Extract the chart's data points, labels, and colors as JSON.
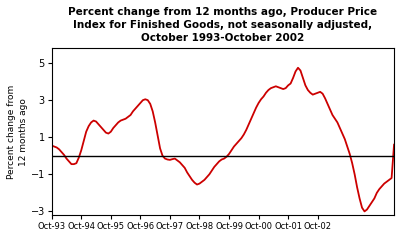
{
  "title": "Percent change from 12 months ago, Producer Price\nIndex for Finished Goods, not seasonally adjusted,\nOctober 1993-October 2002",
  "ylabel": "Percent change from\n12 months ago",
  "line_color": "#cc0000",
  "zero_line_color": "#000000",
  "background_color": "#ffffff",
  "ylim": [
    -3.2,
    5.8
  ],
  "yticks": [
    -3.0,
    -1.0,
    1.0,
    3.0,
    5.0
  ],
  "xtick_labels": [
    "Oct-93",
    "Oct-94",
    "Oct-95",
    "Oct-96",
    "Oct-97",
    "Oct-98",
    "Oct-99",
    "Oct-00",
    "Oct-01",
    "Oct-02"
  ],
  "values": [
    0.55,
    0.5,
    0.45,
    0.35,
    0.2,
    0.05,
    -0.15,
    -0.3,
    -0.45,
    -0.45,
    -0.4,
    -0.1,
    0.3,
    0.8,
    1.3,
    1.6,
    1.8,
    1.9,
    1.85,
    1.7,
    1.55,
    1.4,
    1.25,
    1.2,
    1.3,
    1.5,
    1.65,
    1.8,
    1.9,
    1.95,
    2.0,
    2.1,
    2.2,
    2.4,
    2.55,
    2.7,
    2.85,
    3.0,
    3.05,
    3.0,
    2.8,
    2.4,
    1.8,
    1.1,
    0.4,
    0.0,
    -0.15,
    -0.2,
    -0.22,
    -0.18,
    -0.15,
    -0.25,
    -0.35,
    -0.5,
    -0.65,
    -0.9,
    -1.1,
    -1.3,
    -1.45,
    -1.55,
    -1.5,
    -1.4,
    -1.3,
    -1.15,
    -1.0,
    -0.8,
    -0.6,
    -0.45,
    -0.3,
    -0.2,
    -0.15,
    -0.05,
    0.1,
    0.3,
    0.5,
    0.65,
    0.8,
    0.95,
    1.15,
    1.4,
    1.7,
    2.0,
    2.3,
    2.6,
    2.85,
    3.05,
    3.2,
    3.4,
    3.55,
    3.65,
    3.7,
    3.75,
    3.7,
    3.65,
    3.6,
    3.65,
    3.8,
    3.9,
    4.2,
    4.55,
    4.75,
    4.6,
    4.2,
    3.8,
    3.55,
    3.4,
    3.3,
    3.35,
    3.4,
    3.45,
    3.35,
    3.1,
    2.8,
    2.5,
    2.2,
    2.0,
    1.8,
    1.5,
    1.2,
    0.9,
    0.5,
    0.1,
    -0.4,
    -1.0,
    -1.7,
    -2.3,
    -2.8,
    -3.0,
    -2.9,
    -2.7,
    -2.5,
    -2.3,
    -2.0,
    -1.8,
    -1.65,
    -1.5,
    -1.4,
    -1.3,
    -1.2,
    0.6
  ]
}
